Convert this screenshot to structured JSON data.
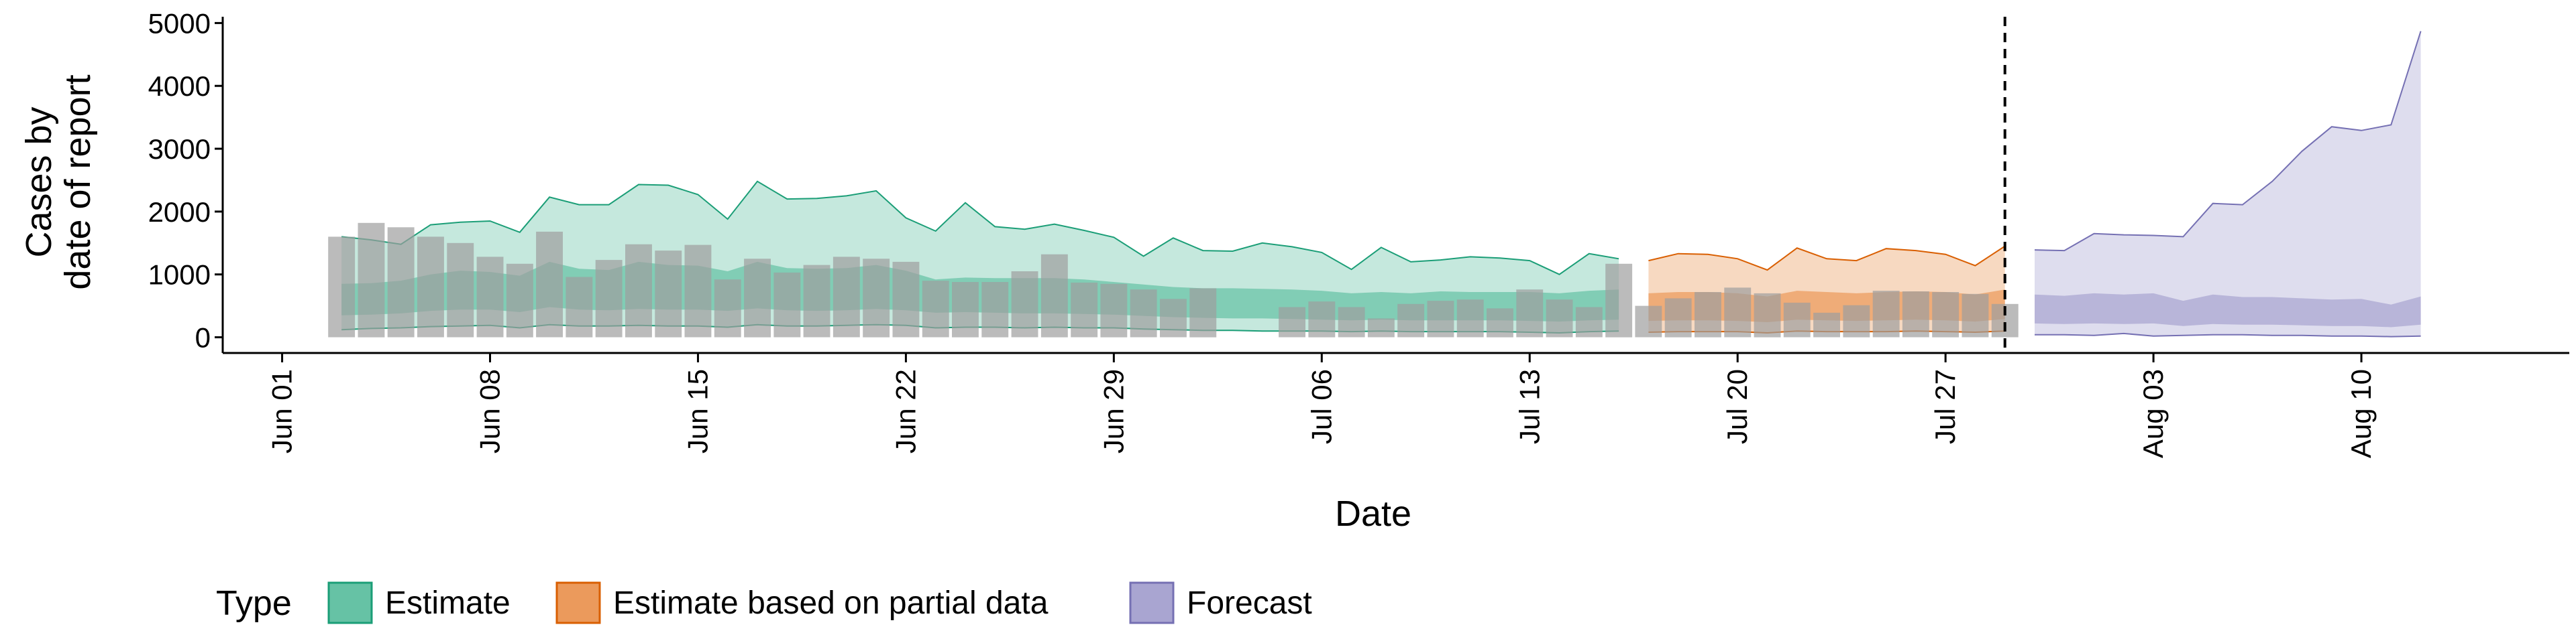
{
  "chart_data": {
    "type": "area",
    "xlabel": "Date",
    "ylabel": [
      "Cases by",
      "date of report"
    ],
    "ylim": [
      -250,
      5100
    ],
    "xlim": [
      "2020-05-30",
      "2020-08-17"
    ],
    "y_ticks": [
      0,
      1000,
      2000,
      3000,
      4000,
      5000
    ],
    "x_ticks": [
      {
        "date": "2020-06-01",
        "label": "Jun 01"
      },
      {
        "date": "2020-06-08",
        "label": "Jun 08"
      },
      {
        "date": "2020-06-15",
        "label": "Jun 15"
      },
      {
        "date": "2020-06-22",
        "label": "Jun 22"
      },
      {
        "date": "2020-06-29",
        "label": "Jun 29"
      },
      {
        "date": "2020-07-06",
        "label": "Jul 06"
      },
      {
        "date": "2020-07-13",
        "label": "Jul 13"
      },
      {
        "date": "2020-07-20",
        "label": "Jul 20"
      },
      {
        "date": "2020-07-27",
        "label": "Jul 27"
      },
      {
        "date": "2020-08-03",
        "label": "Aug 03"
      },
      {
        "date": "2020-08-10",
        "label": "Aug 10"
      }
    ],
    "forecast_date": "2020-07-29",
    "grid": false,
    "legend": {
      "position": "bottom",
      "title": "Type",
      "entries": [
        {
          "name": "Estimate",
          "fill": "#66c2a5",
          "stroke": "#1b9e77"
        },
        {
          "name": "Estimate based on partial data",
          "fill": "#eb9a5c",
          "stroke": "#d95f02"
        },
        {
          "name": "Forecast",
          "fill": "#a9a5d1",
          "stroke": "#7570b3"
        }
      ]
    },
    "observed_cases": {
      "color": "#9e9e9e",
      "dates": [
        "2020-06-03",
        "2020-06-04",
        "2020-06-05",
        "2020-06-06",
        "2020-06-07",
        "2020-06-08",
        "2020-06-09",
        "2020-06-10",
        "2020-06-11",
        "2020-06-12",
        "2020-06-13",
        "2020-06-14",
        "2020-06-15",
        "2020-06-16",
        "2020-06-17",
        "2020-06-18",
        "2020-06-19",
        "2020-06-20",
        "2020-06-21",
        "2020-06-22",
        "2020-06-23",
        "2020-06-24",
        "2020-06-25",
        "2020-06-26",
        "2020-06-27",
        "2020-06-28",
        "2020-06-29",
        "2020-06-30",
        "2020-07-01",
        "2020-07-02",
        "2020-07-03",
        "2020-07-04",
        "2020-07-05",
        "2020-07-06",
        "2020-07-07",
        "2020-07-08",
        "2020-07-09",
        "2020-07-10",
        "2020-07-11",
        "2020-07-12",
        "2020-07-13",
        "2020-07-14",
        "2020-07-15",
        "2020-07-16",
        "2020-07-17",
        "2020-07-18",
        "2020-07-19",
        "2020-07-20",
        "2020-07-21",
        "2020-07-22",
        "2020-07-23",
        "2020-07-24",
        "2020-07-25",
        "2020-07-26",
        "2020-07-27",
        "2020-07-28",
        "2020-07-29"
      ],
      "values": [
        1600,
        1820,
        1750,
        1600,
        1500,
        1280,
        1170,
        1680,
        960,
        1230,
        1480,
        1380,
        1470,
        920,
        1250,
        1030,
        1150,
        1280,
        1250,
        1200,
        900,
        880,
        880,
        1050,
        1320,
        870,
        850,
        760,
        610,
        780,
        0,
        0,
        480,
        570,
        480,
        300,
        530,
        580,
        600,
        460,
        760,
        600,
        480,
        1170,
        500,
        620,
        720,
        790,
        700,
        550,
        390,
        510,
        740,
        730,
        720,
        690,
        530
      ]
    },
    "series": [
      {
        "name": "Estimate",
        "dates": [
          "2020-06-03",
          "2020-06-04",
          "2020-06-05",
          "2020-06-06",
          "2020-06-07",
          "2020-06-08",
          "2020-06-09",
          "2020-06-10",
          "2020-06-11",
          "2020-06-12",
          "2020-06-13",
          "2020-06-14",
          "2020-06-15",
          "2020-06-16",
          "2020-06-17",
          "2020-06-18",
          "2020-06-19",
          "2020-06-20",
          "2020-06-21",
          "2020-06-22",
          "2020-06-23",
          "2020-06-24",
          "2020-06-25",
          "2020-06-26",
          "2020-06-27",
          "2020-06-28",
          "2020-06-29",
          "2020-06-30",
          "2020-07-01",
          "2020-07-02",
          "2020-07-03",
          "2020-07-04",
          "2020-07-05",
          "2020-07-06",
          "2020-07-07",
          "2020-07-08",
          "2020-07-09",
          "2020-07-10",
          "2020-07-11",
          "2020-07-12",
          "2020-07-13",
          "2020-07-14",
          "2020-07-15",
          "2020-07-16"
        ],
        "upper_90": [
          1600,
          1550,
          1480,
          1790,
          1830,
          1850,
          1670,
          2230,
          2110,
          2110,
          2430,
          2420,
          2270,
          1880,
          2480,
          2200,
          2210,
          2250,
          2330,
          1900,
          1690,
          2140,
          1760,
          1720,
          1800,
          1700,
          1590,
          1290,
          1580,
          1380,
          1370,
          1500,
          1440,
          1350,
          1080,
          1430,
          1200,
          1230,
          1280,
          1260,
          1220,
          1000,
          1330,
          1250
        ],
        "upper_50": [
          850,
          860,
          900,
          1000,
          1060,
          1040,
          980,
          1200,
          1090,
          1070,
          1200,
          1150,
          1140,
          1050,
          1200,
          1100,
          1090,
          1100,
          1150,
          1060,
          920,
          950,
          940,
          940,
          940,
          920,
          880,
          840,
          800,
          780,
          780,
          770,
          760,
          740,
          700,
          720,
          700,
          730,
          720,
          720,
          720,
          700,
          740,
          760
        ],
        "lower_50": [
          350,
          360,
          380,
          420,
          440,
          440,
          400,
          480,
          440,
          430,
          450,
          440,
          440,
          420,
          460,
          430,
          420,
          430,
          450,
          430,
          390,
          400,
          390,
          380,
          380,
          370,
          360,
          340,
          320,
          310,
          300,
          300,
          290,
          280,
          270,
          280,
          270,
          270,
          270,
          270,
          260,
          250,
          270,
          280
        ],
        "lower_90": [
          120,
          140,
          150,
          170,
          180,
          190,
          150,
          200,
          180,
          180,
          190,
          180,
          180,
          160,
          200,
          180,
          180,
          190,
          200,
          190,
          150,
          160,
          160,
          150,
          160,
          150,
          150,
          130,
          120,
          110,
          110,
          100,
          100,
          100,
          90,
          100,
          90,
          90,
          90,
          90,
          80,
          70,
          90,
          100
        ]
      },
      {
        "name": "Estimate based on partial data",
        "dates": [
          "2020-07-17",
          "2020-07-18",
          "2020-07-19",
          "2020-07-20",
          "2020-07-21",
          "2020-07-22",
          "2020-07-23",
          "2020-07-24",
          "2020-07-25",
          "2020-07-26",
          "2020-07-27",
          "2020-07-28",
          "2020-07-29"
        ],
        "upper_90": [
          1220,
          1330,
          1320,
          1250,
          1070,
          1420,
          1250,
          1220,
          1410,
          1380,
          1320,
          1140,
          1450
        ],
        "upper_50": [
          700,
          720,
          720,
          700,
          650,
          740,
          720,
          700,
          720,
          730,
          720,
          680,
          760
        ],
        "lower_50": [
          260,
          270,
          270,
          260,
          240,
          280,
          270,
          260,
          270,
          280,
          270,
          250,
          290
        ],
        "lower_90": [
          80,
          90,
          90,
          90,
          70,
          100,
          90,
          90,
          90,
          100,
          90,
          80,
          100
        ]
      },
      {
        "name": "Forecast",
        "dates": [
          "2020-07-30",
          "2020-07-31",
          "2020-08-01",
          "2020-08-02",
          "2020-08-03",
          "2020-08-04",
          "2020-08-05",
          "2020-08-06",
          "2020-08-07",
          "2020-08-08",
          "2020-08-09",
          "2020-08-10",
          "2020-08-11",
          "2020-08-12"
        ],
        "upper_90": [
          1390,
          1380,
          1650,
          1630,
          1620,
          1600,
          2130,
          2110,
          2480,
          2960,
          3350,
          3290,
          3380,
          4870
        ],
        "upper_50": [
          680,
          660,
          700,
          680,
          700,
          580,
          680,
          640,
          640,
          620,
          600,
          610,
          520,
          650
        ],
        "lower_50": [
          220,
          210,
          220,
          210,
          220,
          180,
          210,
          200,
          200,
          190,
          180,
          180,
          160,
          200
        ],
        "lower_90": [
          40,
          40,
          30,
          60,
          20,
          30,
          40,
          40,
          30,
          30,
          20,
          20,
          10,
          20
        ]
      }
    ]
  }
}
